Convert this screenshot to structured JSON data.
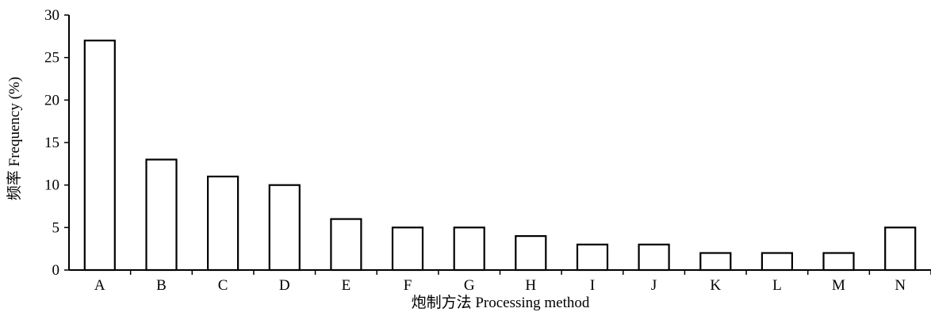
{
  "chart_data": {
    "type": "bar",
    "categories": [
      "A",
      "B",
      "C",
      "D",
      "E",
      "F",
      "G",
      "H",
      "I",
      "J",
      "K",
      "L",
      "M",
      "N"
    ],
    "values": [
      27,
      13,
      11,
      10,
      6,
      5,
      5,
      4,
      3,
      3,
      2,
      2,
      2,
      5
    ],
    "title": "",
    "xlabel": "炮制方法 Processing method",
    "ylabel": "频率 Frequency (%)",
    "ylim": [
      0,
      30
    ],
    "yticks": [
      0,
      5,
      10,
      15,
      20,
      25,
      30
    ],
    "grid": false,
    "bar_fill": "#ffffff",
    "bar_stroke": "#000000"
  }
}
